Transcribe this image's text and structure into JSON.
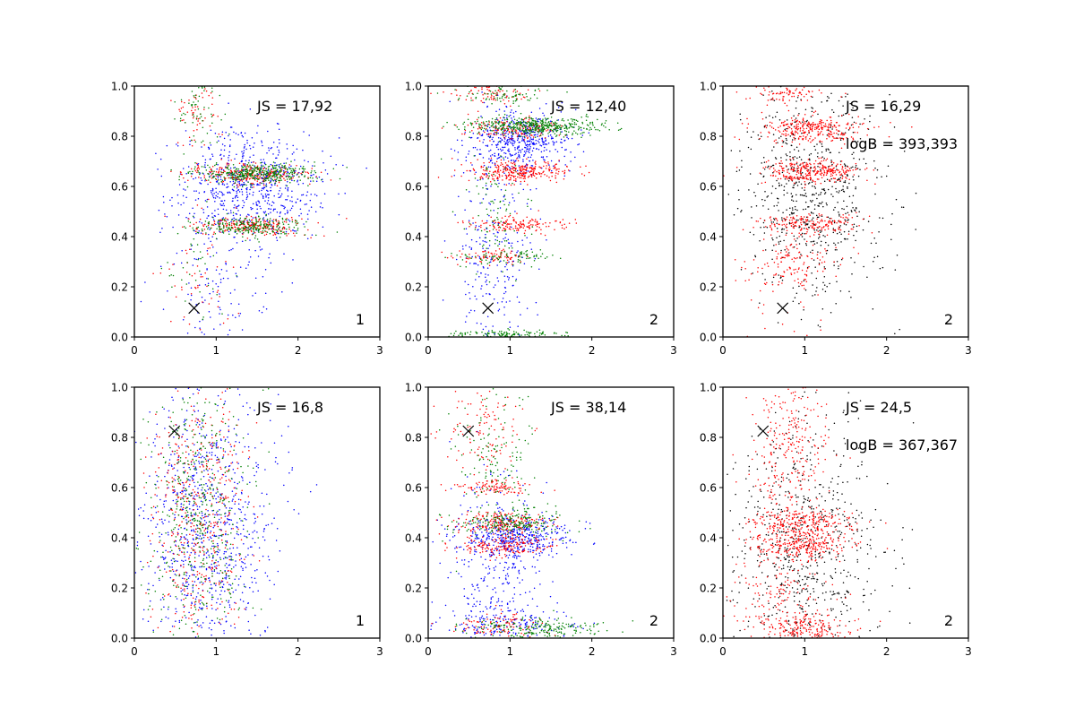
{
  "colors": {
    "blue": "#0000ff",
    "red": "#ff0000",
    "green": "#008000",
    "black": "#000000"
  },
  "chart_data": [
    {
      "type": "scatter",
      "panel_label": "1",
      "xlim": [
        0,
        3
      ],
      "ylim": [
        0,
        1
      ],
      "x_ticks": [
        "0",
        "1",
        "2",
        "3"
      ],
      "y_ticks": [
        "0.0",
        "0.2",
        "0.4",
        "0.6",
        "0.8",
        "1.0"
      ],
      "annotations": [
        "JS = 17,92"
      ],
      "marker": {
        "symbol": "x",
        "x": 0.73,
        "y": 0.115
      },
      "series": [
        {
          "name": "blue",
          "color": "#0000ff",
          "clusters": [
            {
              "cx": 1.4,
              "cy": 0.6,
              "sx": 0.45,
              "sy": 0.11,
              "n": 700
            },
            {
              "cx": 1.0,
              "cy": 0.2,
              "sx": 0.35,
              "sy": 0.12,
              "n": 120
            }
          ]
        },
        {
          "name": "red",
          "color": "#ff0000",
          "clusters": [
            {
              "cx": 1.4,
              "cy": 0.65,
              "sx": 0.35,
              "sy": 0.02,
              "n": 260
            },
            {
              "cx": 1.4,
              "cy": 0.44,
              "sx": 0.35,
              "sy": 0.02,
              "n": 220
            },
            {
              "cx": 0.75,
              "cy": 0.9,
              "sx": 0.15,
              "sy": 0.06,
              "n": 60
            },
            {
              "cx": 0.75,
              "cy": 0.25,
              "sx": 0.2,
              "sy": 0.12,
              "n": 50
            }
          ]
        },
        {
          "name": "green",
          "color": "#008000",
          "clusters": [
            {
              "cx": 1.5,
              "cy": 0.65,
              "sx": 0.35,
              "sy": 0.022,
              "n": 380
            },
            {
              "cx": 1.4,
              "cy": 0.44,
              "sx": 0.35,
              "sy": 0.02,
              "n": 240
            },
            {
              "cx": 0.8,
              "cy": 0.9,
              "sx": 0.15,
              "sy": 0.07,
              "n": 60
            },
            {
              "cx": 0.8,
              "cy": 0.25,
              "sx": 0.2,
              "sy": 0.12,
              "n": 40
            }
          ]
        }
      ]
    },
    {
      "type": "scatter",
      "panel_label": "2",
      "xlim": [
        0,
        3
      ],
      "ylim": [
        0,
        1
      ],
      "x_ticks": [
        "0",
        "1",
        "2",
        "3"
      ],
      "y_ticks": [
        "0.0",
        "0.2",
        "0.4",
        "0.6",
        "0.8",
        "1.0"
      ],
      "annotations": [
        "JS = 12,40"
      ],
      "marker": {
        "symbol": "x",
        "x": 0.73,
        "y": 0.115
      },
      "series": [
        {
          "name": "blue",
          "color": "#0000ff",
          "clusters": [
            {
              "cx": 1.1,
              "cy": 0.78,
              "sx": 0.3,
              "sy": 0.06,
              "n": 500
            },
            {
              "cx": 0.8,
              "cy": 0.35,
              "sx": 0.25,
              "sy": 0.2,
              "n": 250
            }
          ]
        },
        {
          "name": "red",
          "color": "#ff0000",
          "clusters": [
            {
              "cx": 1.1,
              "cy": 0.66,
              "sx": 0.3,
              "sy": 0.02,
              "n": 300
            },
            {
              "cx": 1.1,
              "cy": 0.45,
              "sx": 0.3,
              "sy": 0.015,
              "n": 150
            },
            {
              "cx": 1.0,
              "cy": 0.83,
              "sx": 0.3,
              "sy": 0.02,
              "n": 150
            },
            {
              "cx": 0.8,
              "cy": 0.32,
              "sx": 0.25,
              "sy": 0.015,
              "n": 80
            },
            {
              "cx": 0.8,
              "cy": 0.97,
              "sx": 0.25,
              "sy": 0.02,
              "n": 80
            }
          ]
        },
        {
          "name": "green",
          "color": "#008000",
          "clusters": [
            {
              "cx": 1.3,
              "cy": 0.84,
              "sx": 0.4,
              "sy": 0.018,
              "n": 450
            },
            {
              "cx": 1.0,
              "cy": 0.01,
              "sx": 0.4,
              "sy": 0.008,
              "n": 120
            },
            {
              "cx": 1.0,
              "cy": 0.32,
              "sx": 0.3,
              "sy": 0.02,
              "n": 80
            },
            {
              "cx": 0.8,
              "cy": 0.5,
              "sx": 0.2,
              "sy": 0.15,
              "n": 100
            },
            {
              "cx": 0.9,
              "cy": 0.97,
              "sx": 0.3,
              "sy": 0.02,
              "n": 80
            }
          ]
        }
      ]
    },
    {
      "type": "scatter",
      "panel_label": "2",
      "xlim": [
        0,
        3
      ],
      "ylim": [
        0,
        1
      ],
      "x_ticks": [
        "0",
        "1",
        "2",
        "3"
      ],
      "y_ticks": [
        "0.0",
        "0.2",
        "0.4",
        "0.6",
        "0.8",
        "1.0"
      ],
      "annotations": [
        "JS = 16,29",
        "logB = 393,393"
      ],
      "marker": {
        "symbol": "x",
        "x": 0.73,
        "y": 0.115
      },
      "series": [
        {
          "name": "black",
          "color": "#000000",
          "clusters": [
            {
              "cx": 1.1,
              "cy": 0.55,
              "sx": 0.45,
              "sy": 0.22,
              "n": 700
            }
          ]
        },
        {
          "name": "red",
          "color": "#ff0000",
          "clusters": [
            {
              "cx": 1.1,
              "cy": 0.83,
              "sx": 0.3,
              "sy": 0.025,
              "n": 300
            },
            {
              "cx": 1.1,
              "cy": 0.66,
              "sx": 0.3,
              "sy": 0.025,
              "n": 300
            },
            {
              "cx": 1.1,
              "cy": 0.45,
              "sx": 0.3,
              "sy": 0.02,
              "n": 180
            },
            {
              "cx": 0.9,
              "cy": 0.3,
              "sx": 0.25,
              "sy": 0.05,
              "n": 100
            },
            {
              "cx": 0.8,
              "cy": 0.97,
              "sx": 0.25,
              "sy": 0.02,
              "n": 80
            },
            {
              "cx": 0.6,
              "cy": 0.2,
              "sx": 0.3,
              "sy": 0.15,
              "n": 60
            }
          ]
        }
      ]
    },
    {
      "type": "scatter",
      "panel_label": "1",
      "xlim": [
        0,
        3
      ],
      "ylim": [
        0,
        1
      ],
      "x_ticks": [
        "0",
        "1",
        "2",
        "3"
      ],
      "y_ticks": [
        "0.0",
        "0.2",
        "0.4",
        "0.6",
        "0.8",
        "1.0"
      ],
      "annotations": [
        "JS = 16,8"
      ],
      "marker": {
        "symbol": "x",
        "x": 0.49,
        "y": 0.825
      },
      "series": [
        {
          "name": "blue",
          "color": "#0000ff",
          "clusters": [
            {
              "cx": 0.9,
              "cy": 0.45,
              "sx": 0.4,
              "sy": 0.28,
              "n": 900
            }
          ]
        },
        {
          "name": "red",
          "color": "#ff0000",
          "clusters": [
            {
              "cx": 0.8,
              "cy": 0.5,
              "sx": 0.3,
              "sy": 0.28,
              "n": 500
            }
          ]
        },
        {
          "name": "green",
          "color": "#008000",
          "clusters": [
            {
              "cx": 0.8,
              "cy": 0.5,
              "sx": 0.3,
              "sy": 0.28,
              "n": 500
            }
          ]
        }
      ]
    },
    {
      "type": "scatter",
      "panel_label": "2",
      "xlim": [
        0,
        3
      ],
      "ylim": [
        0,
        1
      ],
      "x_ticks": [
        "0",
        "1",
        "2",
        "3"
      ],
      "y_ticks": [
        "0.0",
        "0.2",
        "0.4",
        "0.6",
        "0.8",
        "1.0"
      ],
      "annotations": [
        "JS = 38,14"
      ],
      "marker": {
        "symbol": "x",
        "x": 0.49,
        "y": 0.825
      },
      "series": [
        {
          "name": "blue",
          "color": "#0000ff",
          "clusters": [
            {
              "cx": 1.1,
              "cy": 0.4,
              "sx": 0.35,
              "sy": 0.04,
              "n": 400
            },
            {
              "cx": 0.8,
              "cy": 0.25,
              "sx": 0.3,
              "sy": 0.2,
              "n": 300
            },
            {
              "cx": 1.0,
              "cy": 0.05,
              "sx": 0.4,
              "sy": 0.03,
              "n": 150
            }
          ]
        },
        {
          "name": "red",
          "color": "#ff0000",
          "clusters": [
            {
              "cx": 0.9,
              "cy": 0.46,
              "sx": 0.3,
              "sy": 0.02,
              "n": 200
            },
            {
              "cx": 0.9,
              "cy": 0.37,
              "sx": 0.3,
              "sy": 0.02,
              "n": 180
            },
            {
              "cx": 0.8,
              "cy": 0.6,
              "sx": 0.25,
              "sy": 0.015,
              "n": 100
            },
            {
              "cx": 0.7,
              "cy": 0.85,
              "sx": 0.25,
              "sy": 0.1,
              "n": 120
            },
            {
              "cx": 0.8,
              "cy": 0.05,
              "sx": 0.3,
              "sy": 0.03,
              "n": 100
            }
          ]
        },
        {
          "name": "green",
          "color": "#008000",
          "clusters": [
            {
              "cx": 1.0,
              "cy": 0.46,
              "sx": 0.35,
              "sy": 0.025,
              "n": 200
            },
            {
              "cx": 1.3,
              "cy": 0.04,
              "sx": 0.4,
              "sy": 0.02,
              "n": 200
            },
            {
              "cx": 0.8,
              "cy": 0.7,
              "sx": 0.25,
              "sy": 0.15,
              "n": 150
            }
          ]
        }
      ]
    },
    {
      "type": "scatter",
      "panel_label": "2",
      "xlim": [
        0,
        3
      ],
      "ylim": [
        0,
        1
      ],
      "x_ticks": [
        "0",
        "1",
        "2",
        "3"
      ],
      "y_ticks": [
        "0.0",
        "0.2",
        "0.4",
        "0.6",
        "0.8",
        "1.0"
      ],
      "annotations": [
        "JS = 24,5",
        "logB = 367,367"
      ],
      "marker": {
        "symbol": "x",
        "x": 0.49,
        "y": 0.825
      },
      "series": [
        {
          "name": "black",
          "color": "#000000",
          "clusters": [
            {
              "cx": 1.0,
              "cy": 0.35,
              "sx": 0.45,
              "sy": 0.25,
              "n": 700
            }
          ]
        },
        {
          "name": "red",
          "color": "#ff0000",
          "clusters": [
            {
              "cx": 1.0,
              "cy": 0.46,
              "sx": 0.3,
              "sy": 0.03,
              "n": 250
            },
            {
              "cx": 1.0,
              "cy": 0.37,
              "sx": 0.3,
              "sy": 0.025,
              "n": 250
            },
            {
              "cx": 0.8,
              "cy": 0.75,
              "sx": 0.25,
              "sy": 0.18,
              "n": 300
            },
            {
              "cx": 1.0,
              "cy": 0.04,
              "sx": 0.3,
              "sy": 0.03,
              "n": 200
            },
            {
              "cx": 0.7,
              "cy": 0.2,
              "sx": 0.3,
              "sy": 0.1,
              "n": 150
            }
          ]
        }
      ]
    }
  ]
}
